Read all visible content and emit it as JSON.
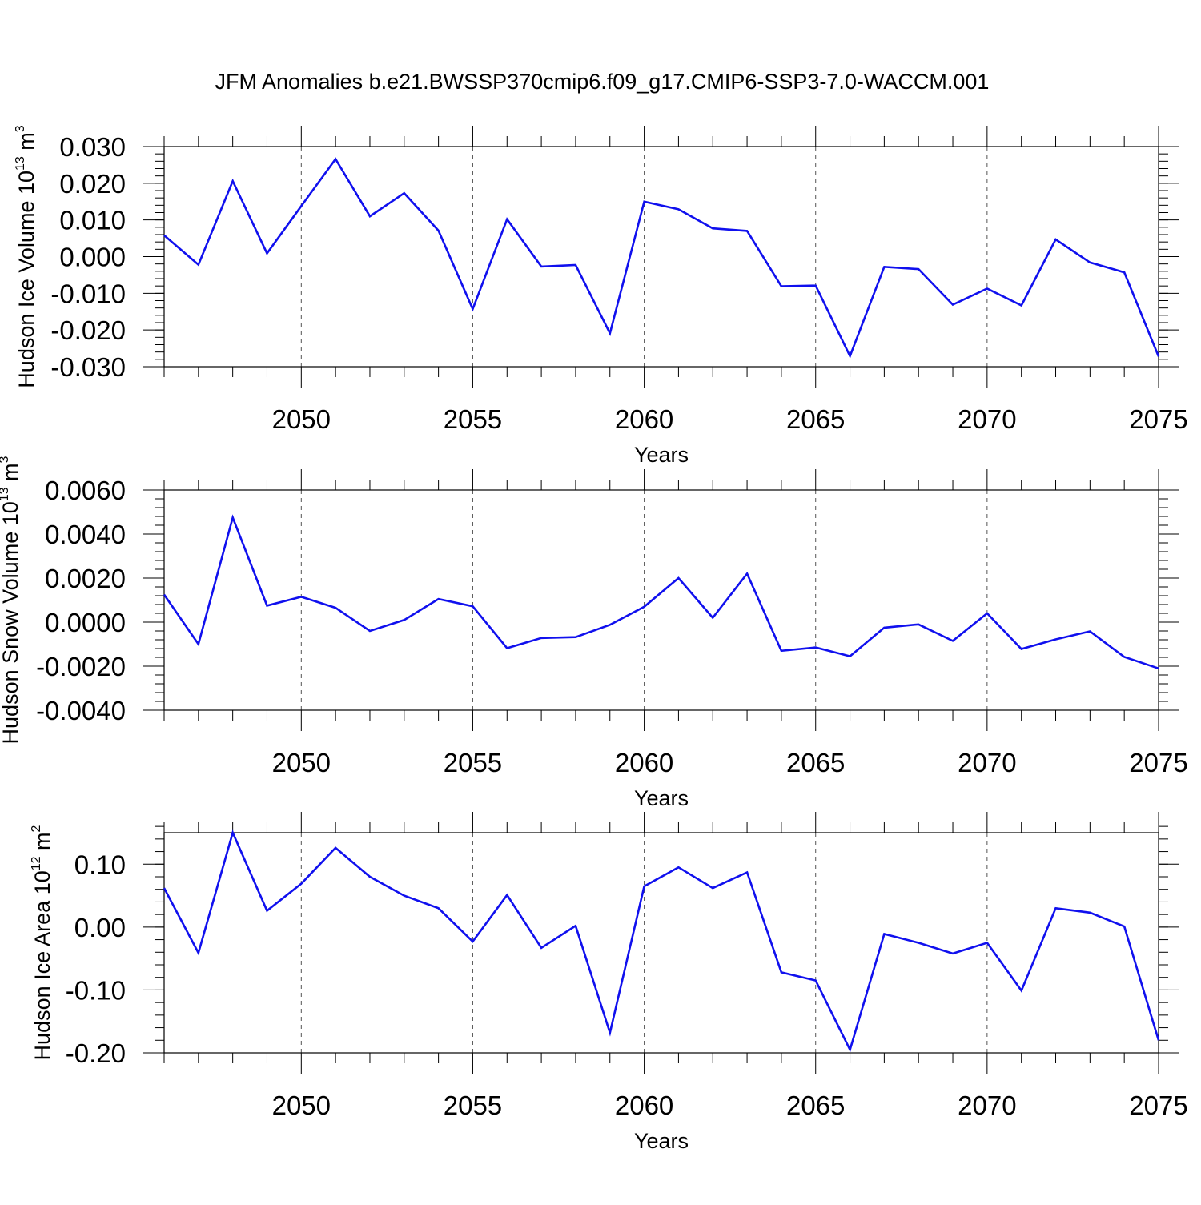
{
  "figure_title": "JFM Anomalies b.e21.BWSSP370cmip6.f09_g17.CMIP6-SSP3-7.0-WACCM.001",
  "series_color": "#1010ee",
  "chart_data": [
    {
      "type": "line",
      "ylabel_main": "Hudson Ice Volume 10",
      "ylabel_exp": "13",
      "ylabel_unit": "m",
      "ylabel_unit_exp": "3",
      "xlabel": "Years",
      "xlim": [
        2046,
        2075
      ],
      "ylim": [
        -0.03,
        0.03
      ],
      "xticks": [
        2050,
        2055,
        2060,
        2065,
        2070,
        2075
      ],
      "yticks": [
        {
          "v": 0.03,
          "label": "0.030"
        },
        {
          "v": 0.02,
          "label": "0.020"
        },
        {
          "v": 0.01,
          "label": "0.010"
        },
        {
          "v": 0.0,
          "label": "0.000"
        },
        {
          "v": -0.01,
          "label": "-0.010"
        },
        {
          "v": -0.02,
          "label": "-0.020"
        },
        {
          "v": -0.03,
          "label": "-0.030"
        }
      ],
      "yminor_step": 0.002,
      "x": [
        2046,
        2047,
        2048,
        2049,
        2050,
        2051,
        2052,
        2053,
        2054,
        2055,
        2056,
        2057,
        2058,
        2059,
        2060,
        2061,
        2062,
        2063,
        2064,
        2065,
        2066,
        2067,
        2068,
        2069,
        2070,
        2071,
        2072,
        2073,
        2074,
        2075
      ],
      "y": [
        0.0058,
        -0.0022,
        0.0206,
        0.0009,
        0.0138,
        0.0266,
        0.011,
        0.0173,
        0.0071,
        -0.0143,
        0.0102,
        -0.0027,
        -0.0023,
        -0.0209,
        0.015,
        0.0129,
        0.0077,
        0.007,
        -0.0081,
        -0.0079,
        -0.0271,
        -0.0028,
        -0.0034,
        -0.0131,
        -0.0087,
        -0.0133,
        0.0047,
        -0.0016,
        -0.0043,
        -0.0272
      ]
    },
    {
      "type": "line",
      "ylabel_main": "Hudson Snow Volume 10",
      "ylabel_exp": "13",
      "ylabel_unit": "m",
      "ylabel_unit_exp": "3",
      "xlabel": "Years",
      "xlim": [
        2046,
        2075
      ],
      "ylim": [
        -0.004,
        0.006
      ],
      "xticks": [
        2050,
        2055,
        2060,
        2065,
        2070,
        2075
      ],
      "yticks": [
        {
          "v": 0.006,
          "label": "0.0060"
        },
        {
          "v": 0.004,
          "label": "0.0040"
        },
        {
          "v": 0.002,
          "label": "0.0020"
        },
        {
          "v": 0.0,
          "label": "0.0000"
        },
        {
          "v": -0.002,
          "label": "-0.0020"
        },
        {
          "v": -0.004,
          "label": "-0.0040"
        }
      ],
      "yminor_step": 0.0004,
      "x": [
        2046,
        2047,
        2048,
        2049,
        2050,
        2051,
        2052,
        2053,
        2054,
        2055,
        2056,
        2057,
        2058,
        2059,
        2060,
        2061,
        2062,
        2063,
        2064,
        2065,
        2066,
        2067,
        2068,
        2069,
        2070,
        2071,
        2072,
        2073,
        2074,
        2075
      ],
      "y": [
        0.00125,
        -0.001,
        0.00475,
        0.00075,
        0.00115,
        0.00065,
        -0.0004,
        0.0001,
        0.00105,
        0.00072,
        -0.00118,
        -0.00072,
        -0.00068,
        -0.00012,
        0.0007,
        0.002,
        0.0002,
        0.0022,
        -0.0013,
        -0.00115,
        -0.00155,
        -0.00025,
        -0.0001,
        -0.00085,
        0.0004,
        -0.00122,
        -0.00078,
        -0.00042,
        -0.00158,
        -0.0021
      ]
    },
    {
      "type": "line",
      "ylabel_main": "Hudson Ice Area 10",
      "ylabel_exp": "12",
      "ylabel_unit": "m",
      "ylabel_unit_exp": "2",
      "xlabel": "Years",
      "xlim": [
        2046,
        2075
      ],
      "ylim": [
        -0.2,
        0.15
      ],
      "xticks": [
        2050,
        2055,
        2060,
        2065,
        2070,
        2075
      ],
      "yticks": [
        {
          "v": 0.1,
          "label": "0.10"
        },
        {
          "v": 0.0,
          "label": "0.00"
        },
        {
          "v": -0.1,
          "label": "-0.10"
        },
        {
          "v": -0.2,
          "label": "-0.20"
        }
      ],
      "yminor_step": 0.02,
      "x": [
        2046,
        2047,
        2048,
        2049,
        2050,
        2051,
        2052,
        2053,
        2054,
        2055,
        2056,
        2057,
        2058,
        2059,
        2060,
        2061,
        2062,
        2063,
        2064,
        2065,
        2066,
        2067,
        2068,
        2069,
        2070,
        2071,
        2072,
        2073,
        2074,
        2075
      ],
      "y": [
        0.062,
        -0.041,
        0.15,
        0.026,
        0.069,
        0.126,
        0.08,
        0.05,
        0.03,
        -0.023,
        0.051,
        -0.033,
        0.002,
        -0.168,
        0.065,
        0.095,
        0.062,
        0.087,
        -0.072,
        -0.085,
        -0.195,
        -0.011,
        -0.025,
        -0.042,
        -0.025,
        -0.101,
        0.03,
        0.023,
        0.001,
        -0.18
      ]
    }
  ]
}
